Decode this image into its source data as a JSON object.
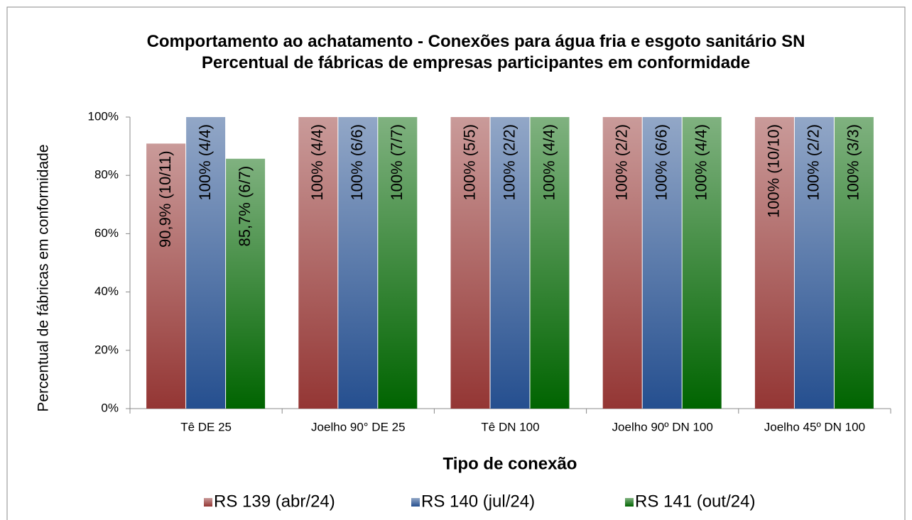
{
  "chart_data": {
    "type": "bar",
    "title": "Comportamento ao achatamento  - Conexões para água fria e esgoto sanitário SN",
    "subtitle": "Percentual de fábricas de empresas participantes em conformidade",
    "x_label": "Tipo de conexão",
    "y_label": "Percentual de fábricas em conformidade",
    "categories": [
      "Tê DE 25",
      "Joelho 90° DE 25",
      "Tê DN 100",
      "Joelho 90º DN 100",
      "Joelho 45º DN 100"
    ],
    "series": [
      {
        "name": "RS 139 (abr/24)",
        "color": "#943634",
        "values": [
          90.9,
          100,
          100,
          100,
          100
        ],
        "value_labels": [
          "90,9% (10/11)",
          "100% (4/4)",
          "100% (5/5)",
          "100% (2/2)",
          "100% (10/10)"
        ]
      },
      {
        "name": "RS 140 (jul/24)",
        "color": "#254f8f",
        "values": [
          100,
          100,
          100,
          100,
          100
        ],
        "value_labels": [
          "100% (4/4)",
          "100% (6/6)",
          "100% (2/2)",
          "100% (6/6)",
          "100% (2/2)"
        ]
      },
      {
        "name": "RS 141 (out/24)",
        "color": "#006400",
        "values": [
          85.7,
          100,
          100,
          100,
          100
        ],
        "value_labels": [
          "85,7% (6/7)",
          "100% (7/7)",
          "100% (4/4)",
          "100% (4/4)",
          "100% (3/3)"
        ]
      }
    ],
    "ylim": [
      0,
      100
    ],
    "yticks": [
      {
        "value": 0,
        "label": "0%"
      },
      {
        "value": 20,
        "label": "20%"
      },
      {
        "value": 40,
        "label": "40%"
      },
      {
        "value": 60,
        "label": "60%"
      },
      {
        "value": 80,
        "label": "80%"
      },
      {
        "value": 100,
        "label": "100%"
      }
    ],
    "grid": false,
    "legend": "bottom"
  }
}
